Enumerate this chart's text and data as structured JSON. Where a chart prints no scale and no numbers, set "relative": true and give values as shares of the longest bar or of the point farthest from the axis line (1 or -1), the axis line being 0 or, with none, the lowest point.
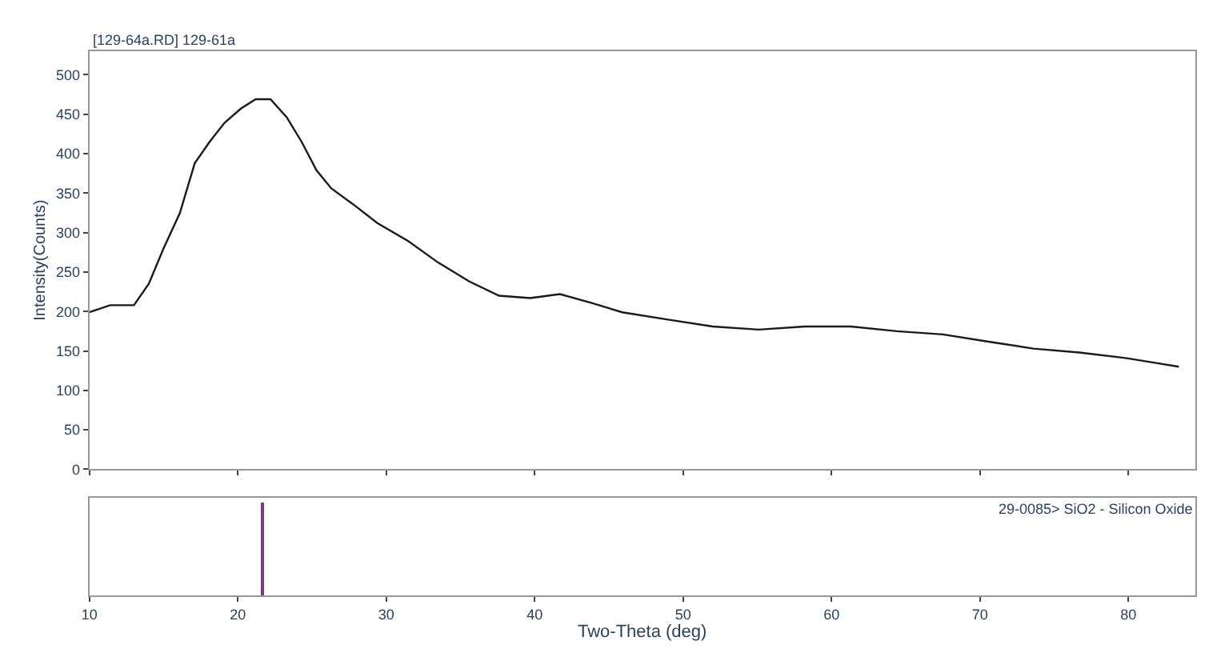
{
  "chart_data": [
    {
      "type": "line",
      "title": "[129-64a.RD] 129-61a",
      "ylabel": "Intensity(Counts)",
      "color": "#1a1a1a",
      "tick_labels": "y",
      "marker": "none",
      "line_style": "solid",
      "x": [
        10.0,
        11.4,
        13.0,
        14.0,
        15.0,
        16.1,
        17.1,
        18.1,
        19.1,
        20.2,
        21.2,
        22.2,
        23.3,
        24.3,
        25.3,
        26.3,
        27.9,
        29.4,
        31.5,
        33.5,
        35.6,
        37.6,
        39.7,
        41.7,
        43.8,
        45.9,
        48.9,
        52.0,
        55.1,
        58.2,
        61.3,
        64.4,
        67.5,
        70.5,
        73.6,
        76.7,
        79.8,
        81.8,
        83.4
      ],
      "values": [
        199,
        208,
        208,
        235,
        280,
        325,
        388,
        415,
        439,
        457,
        469,
        469,
        446,
        415,
        379,
        356,
        334,
        312,
        289,
        262,
        238,
        220,
        217,
        222,
        211,
        199,
        190,
        181,
        177,
        181,
        181,
        175,
        171,
        162,
        153,
        148,
        141,
        135,
        130
      ],
      "xlim": [
        10,
        84.5
      ],
      "ylim": [
        0,
        530
      ],
      "yticks": [
        0,
        50,
        100,
        150,
        200,
        250,
        300,
        350,
        400,
        450,
        500
      ]
    },
    {
      "type": "bar",
      "relative": true,
      "x": [
        21.7
      ],
      "values": [
        1
      ],
      "color": "#7a3a8a",
      "tick_labels": "x",
      "xlabel": "Two-Theta (deg)",
      "annotations": [
        "29-0085> SiO2 - Silicon Oxide"
      ],
      "xlim": [
        10,
        84.5
      ],
      "xticks": [
        10,
        20,
        30,
        40,
        50,
        60,
        70,
        80
      ]
    }
  ]
}
